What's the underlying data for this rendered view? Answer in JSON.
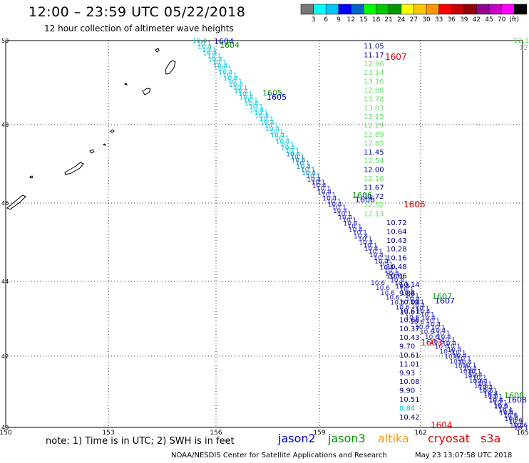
{
  "header": {
    "title": "12:00 – 23:59 UTC 05/22/2018",
    "subtitle": "12 hour collection of altimeter wave heights"
  },
  "color_scale": {
    "colors": [
      "#777777",
      "#00ffff",
      "#00c8ff",
      "#0000ff",
      "#0064c8",
      "#00ff00",
      "#00c800",
      "#009600",
      "#ffff00",
      "#ffc800",
      "#ff9600",
      "#ff0000",
      "#c80000",
      "#960000",
      "#960096",
      "#c800c8",
      "#ff00ff",
      "#000000"
    ],
    "labels": [
      "3",
      "6",
      "9",
      "12",
      "15",
      "18",
      "21",
      "24",
      "27",
      "30",
      "33",
      "36",
      "39",
      "42",
      "45",
      "70",
      "(ft)"
    ]
  },
  "axes": {
    "lon_ticks": [
      "150",
      "153",
      "156",
      "159",
      "162",
      "165"
    ],
    "lat_ticks": [
      "50",
      "48",
      "46",
      "44",
      "42",
      "40"
    ]
  },
  "tracks": {
    "near_track_times_top": [
      "1604",
      "1604"
    ],
    "near_track_times_mid": [
      "1605",
      "1605"
    ],
    "right_track_times": [
      "1606",
      "1606",
      "1607",
      "1607",
      "1608",
      "1608"
    ],
    "red_times": [
      "1607",
      "1606",
      "1603",
      "1604"
    ],
    "col_values": [
      "11.05",
      "11.17",
      "12.96",
      "13.14",
      "13.16",
      "12.88",
      "13.78",
      "13.83",
      "13.15",
      "12.29",
      "12.89",
      "12.85",
      "11.45",
      "12.54",
      "12.00",
      "12.16",
      "11.67",
      "11.72",
      "12.52",
      "12.13",
      "10.72",
      "10.64",
      "10.43",
      "10.28",
      "10.16",
      "10.48",
      "10.66",
      "10.14",
      "9.88",
      "10.09",
      "10.61",
      "10.66",
      "10.37",
      "10.43",
      "9.70",
      "10.61",
      "11.01",
      "9.93",
      "10.08",
      "9.90",
      "10.51",
      "8.84",
      "10.42"
    ],
    "corner_values": [
      "12.1",
      "12"
    ]
  },
  "note": "note: 1) Time is in UTC; 2) SWH is in feet",
  "legend": [
    {
      "name": "jason2",
      "color": "#0000cc"
    },
    {
      "name": "jason3",
      "color": "#009600"
    },
    {
      "name": "altika",
      "color": "#ff9600"
    },
    {
      "name": "cryosat",
      "color": "#e00000"
    },
    {
      "name": "s3a",
      "color": "#e00000"
    }
  ],
  "footer": {
    "left": "NOAA/NESDIS Center for Satellite Applications and Research",
    "right": "May 23 13:07:58 UTC 2018"
  }
}
